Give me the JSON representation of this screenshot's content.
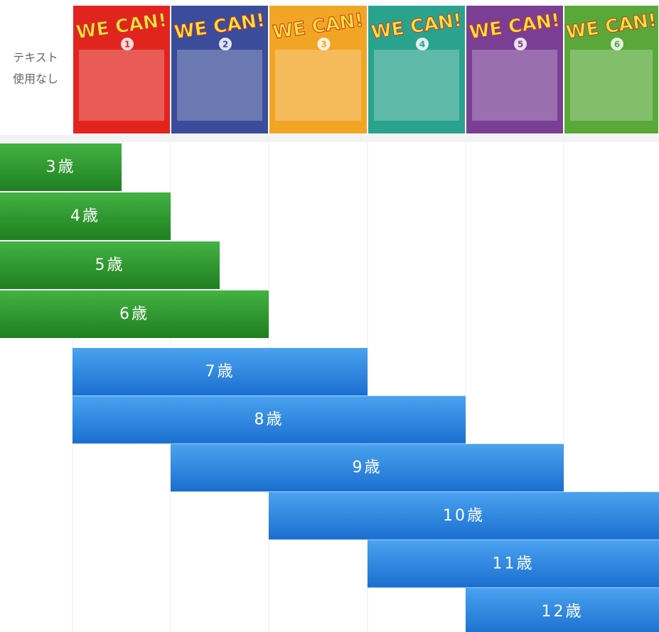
{
  "header": {
    "no_text_label": [
      "テキスト",
      "使用なし"
    ]
  },
  "covers": [
    {
      "title": "WE CAN!",
      "number": "1",
      "color": "#e2241f"
    },
    {
      "title": "WE CAN!",
      "number": "2",
      "color": "#3a4c9a"
    },
    {
      "title": "WE CAN!",
      "number": "3",
      "color": "#f2a524"
    },
    {
      "title": "WE CAN!",
      "number": "4",
      "color": "#2aa38e"
    },
    {
      "title": "WE CAN!",
      "number": "5",
      "color": "#7a3f94"
    },
    {
      "title": "WE CAN!",
      "number": "6",
      "color": "#5aa83a"
    }
  ],
  "rows": [
    {
      "label": "3歳",
      "start": 0,
      "end": 1.5,
      "group": "green"
    },
    {
      "label": "4歳",
      "start": 0,
      "end": 2,
      "group": "green"
    },
    {
      "label": "5歳",
      "start": 0,
      "end": 2.5,
      "group": "green"
    },
    {
      "label": "6歳",
      "start": 0,
      "end": 3,
      "group": "green"
    },
    {
      "label": "7歳",
      "start": 1,
      "end": 4,
      "group": "blue"
    },
    {
      "label": "8歳",
      "start": 1,
      "end": 5,
      "group": "blue"
    },
    {
      "label": "9歳",
      "start": 2,
      "end": 6,
      "group": "blue"
    },
    {
      "label": "10歳",
      "start": 3,
      "end": 7,
      "group": "blue"
    },
    {
      "label": "11歳",
      "start": 4,
      "end": 7,
      "group": "blue"
    },
    {
      "label": "12歳",
      "start": 5,
      "end": 7,
      "group": "blue"
    }
  ]
}
